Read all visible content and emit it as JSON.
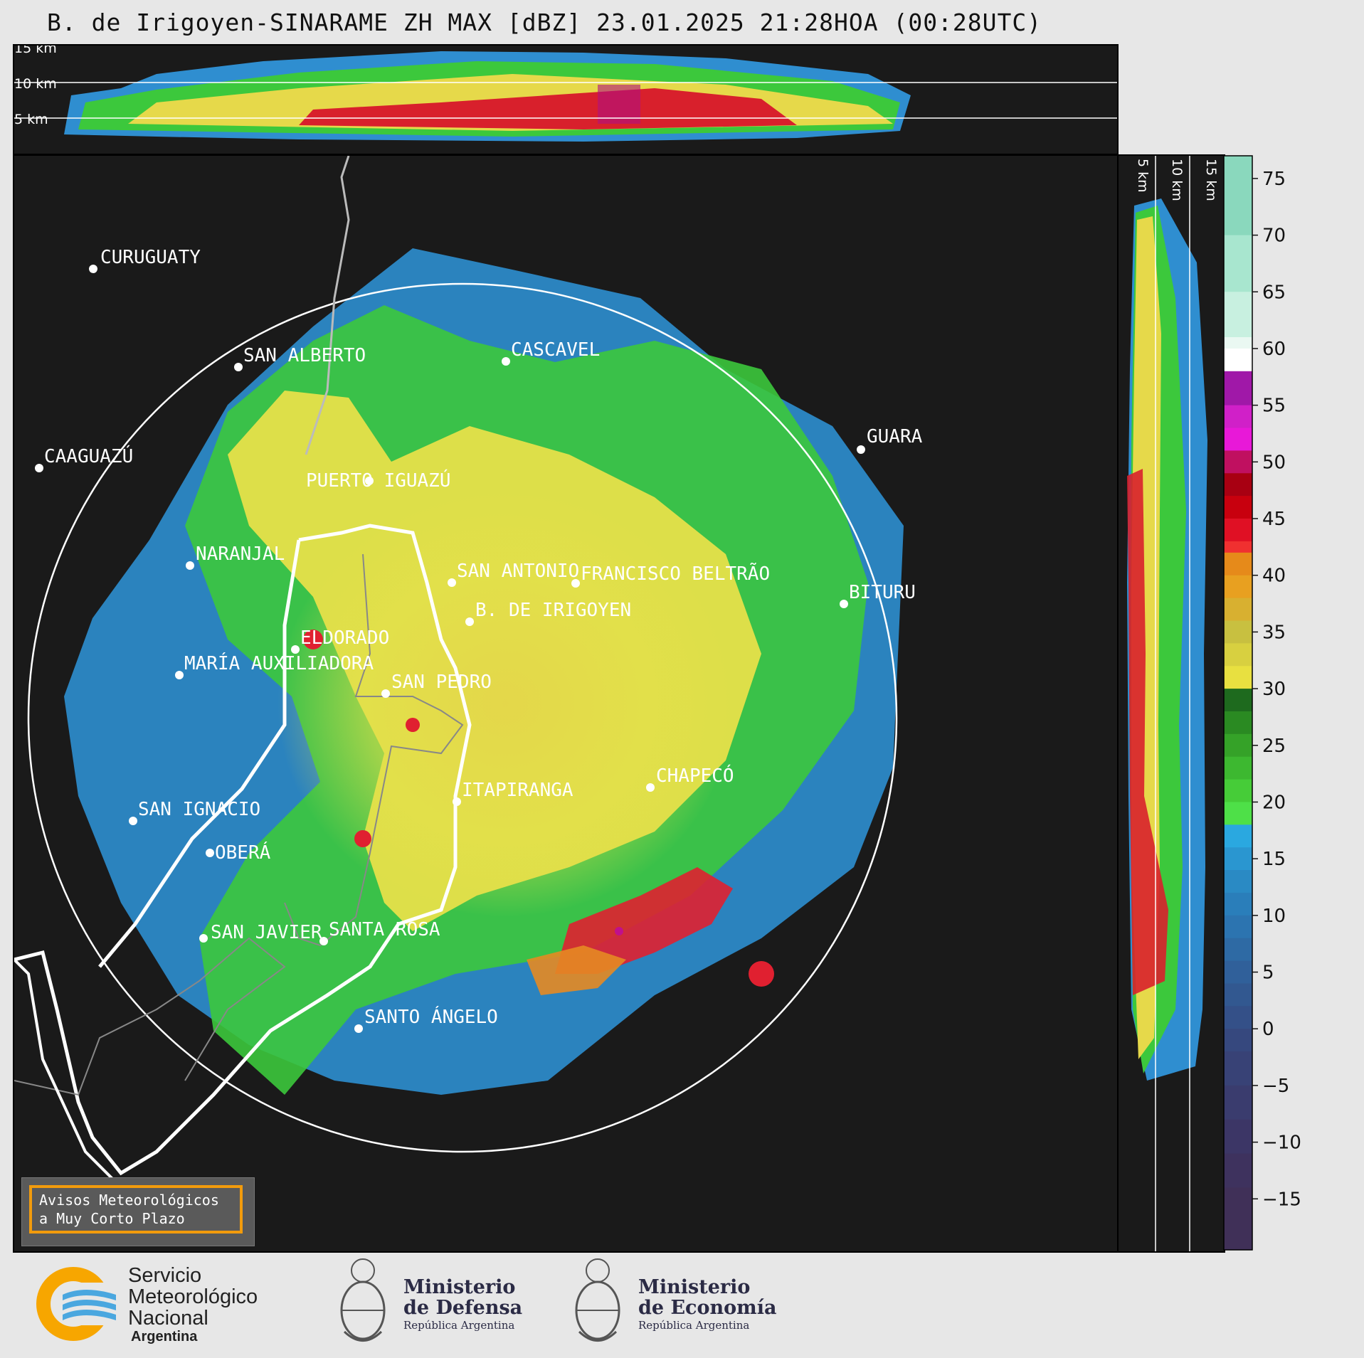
{
  "title": "B. de Irigoyen-SINARAME ZH MAX [dBZ] 23.01.2025 21:28HOA (00:28UTC)",
  "top_height_labels": [
    "15 km",
    "10 km",
    "5 km"
  ],
  "side_height_labels": [
    "5 km",
    "10 km",
    "15 km"
  ],
  "colorbar": {
    "ticks": [
      "75",
      "70",
      "65",
      "60",
      "55",
      "50",
      "45",
      "40",
      "35",
      "30",
      "25",
      "20",
      "15",
      "10",
      "5",
      "0",
      "−5",
      "−10",
      "−15"
    ]
  },
  "cities": [
    {
      "name": "CURUGUATY"
    },
    {
      "name": "SAN ALBERTO"
    },
    {
      "name": "CASCAVEL"
    },
    {
      "name": "CAAGUAZÚ"
    },
    {
      "name": "GUARA"
    },
    {
      "name": "PUERTO IGUAZÚ"
    },
    {
      "name": "NARANJAL"
    },
    {
      "name": "SAN ANTONIO"
    },
    {
      "name": "FRANCISCO BELTRÃO"
    },
    {
      "name": "BITURU"
    },
    {
      "name": "B. DE IRIGOYEN"
    },
    {
      "name": "ELDORADO"
    },
    {
      "name": "MARÍA AUXILIADORA"
    },
    {
      "name": "SAN PEDRO"
    },
    {
      "name": "CHAPECÓ"
    },
    {
      "name": "ITAPIRANGA"
    },
    {
      "name": "SAN IGNACIO"
    },
    {
      "name": "OBERÁ"
    },
    {
      "name": "SAN JAVIER"
    },
    {
      "name": "SANTA ROSA"
    },
    {
      "name": "SANTO ÁNGELO"
    }
  ],
  "warning": {
    "line1": "Avisos Meteorológicos",
    "line2": "a Muy Corto Plazo"
  },
  "logos": {
    "smn_line1": "Servicio",
    "smn_line2": "Meteorológico",
    "smn_line3": "Nacional",
    "smn_line4": "Argentina",
    "defensa_line1": "Ministerio",
    "defensa_line2": "de Defensa",
    "defensa_line3": "República Argentina",
    "economia_line1": "Ministerio",
    "economia_line2": "de Economía",
    "economia_line3": "República Argentina"
  },
  "colors": {
    "background": "#1a1a1a",
    "weak_echo": "#2b8fd0",
    "moderate_echo": "#3cc83c",
    "strong_echo": "#e8e040",
    "intense_echo": "#e0202e",
    "accent_orange": "#f29b0c"
  }
}
